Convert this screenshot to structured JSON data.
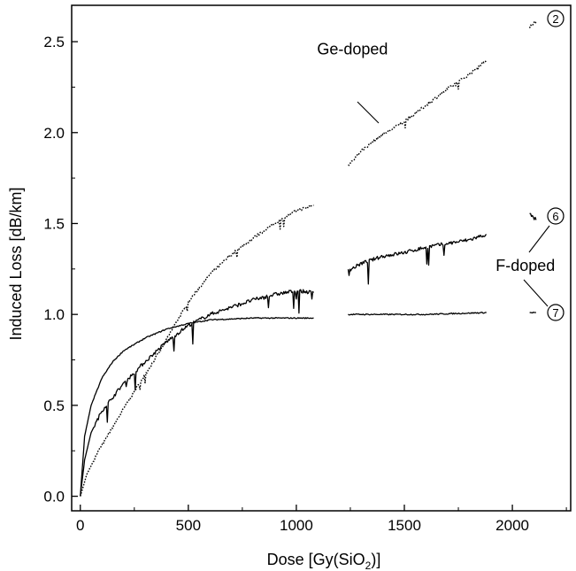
{
  "chart_data": {
    "type": "line",
    "title": "",
    "xlabel": "Dose [Gy(SiO",
    "xlabel_sub": "2",
    "xlabel_tail": ")]",
    "ylabel": "Induced Loss [dB/km]",
    "xlim": [
      -40,
      2270
    ],
    "ylim": [
      -0.08,
      2.7
    ],
    "xticks": [
      0,
      500,
      1000,
      1500,
      2000
    ],
    "yticks": [
      0.0,
      0.5,
      1.0,
      1.5,
      2.0,
      2.5
    ],
    "xtick_labels": [
      "0",
      "500",
      "1000",
      "1500",
      "2000"
    ],
    "ytick_labels": [
      "0.0",
      "0.5",
      "1.0",
      "1.5",
      "2.0",
      "2.5"
    ],
    "grid": false,
    "legend": "none",
    "series": [
      {
        "key": "ge",
        "marker": "2",
        "style": "dotted",
        "segments": [
          [
            [
              0,
              0.0
            ],
            [
              30,
              0.12
            ],
            [
              80,
              0.24
            ],
            [
              150,
              0.38
            ],
            [
              220,
              0.52
            ],
            [
              300,
              0.67
            ],
            [
              380,
              0.82
            ],
            [
              450,
              0.97
            ],
            [
              520,
              1.1
            ],
            [
              600,
              1.22
            ],
            [
              700,
              1.33
            ],
            [
              800,
              1.42
            ],
            [
              900,
              1.5
            ],
            [
              1000,
              1.57
            ],
            [
              1080,
              1.6
            ]
          ],
          [
            [
              1240,
              1.82
            ],
            [
              1300,
              1.9
            ],
            [
              1400,
              1.99
            ],
            [
              1500,
              2.06
            ],
            [
              1600,
              2.15
            ],
            [
              1700,
              2.24
            ],
            [
              1800,
              2.32
            ],
            [
              1880,
              2.4
            ]
          ],
          [
            [
              2080,
              2.58
            ],
            [
              2110,
              2.61
            ]
          ]
        ]
      },
      {
        "key": "f6",
        "marker": "6",
        "style": "solid",
        "segments": [
          [
            [
              0,
              0.0
            ],
            [
              20,
              0.2
            ],
            [
              50,
              0.35
            ],
            [
              100,
              0.47
            ],
            [
              200,
              0.62
            ],
            [
              300,
              0.74
            ],
            [
              400,
              0.85
            ],
            [
              500,
              0.94
            ],
            [
              600,
              1.0
            ],
            [
              700,
              1.04
            ],
            [
              800,
              1.08
            ],
            [
              900,
              1.11
            ],
            [
              1000,
              1.13
            ],
            [
              1080,
              1.12
            ]
          ],
          [
            [
              1240,
              1.24
            ],
            [
              1300,
              1.28
            ],
            [
              1400,
              1.32
            ],
            [
              1500,
              1.34
            ],
            [
              1600,
              1.37
            ],
            [
              1700,
              1.39
            ],
            [
              1800,
              1.41
            ],
            [
              1880,
              1.44
            ]
          ],
          [
            [
              2080,
              1.55
            ],
            [
              2110,
              1.52
            ]
          ]
        ]
      },
      {
        "key": "f7",
        "marker": "7",
        "style": "solid",
        "segments": [
          [
            [
              0,
              0.0
            ],
            [
              20,
              0.33
            ],
            [
              50,
              0.5
            ],
            [
              100,
              0.65
            ],
            [
              150,
              0.74
            ],
            [
              200,
              0.8
            ],
            [
              300,
              0.87
            ],
            [
              400,
              0.92
            ],
            [
              500,
              0.95
            ],
            [
              600,
              0.97
            ],
            [
              700,
              0.975
            ],
            [
              800,
              0.98
            ],
            [
              900,
              0.98
            ],
            [
              1000,
              0.98
            ],
            [
              1080,
              0.98
            ]
          ],
          [
            [
              1240,
              1.0
            ],
            [
              1400,
              1.0
            ],
            [
              1600,
              1.0
            ],
            [
              1880,
              1.01
            ]
          ],
          [
            [
              2080,
              1.01
            ],
            [
              2110,
              1.01
            ]
          ]
        ]
      }
    ],
    "annotations": [
      {
        "text": "Ge-doped",
        "x": 1260,
        "y": 2.43
      },
      {
        "text": "F-doped",
        "x": 2060,
        "y": 1.24
      }
    ]
  }
}
